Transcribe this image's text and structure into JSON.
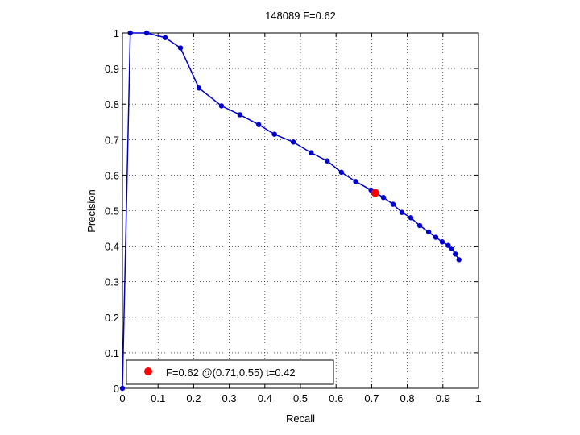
{
  "chart_data": {
    "type": "line",
    "title": "148089 F=0.62",
    "xlabel": "Recall",
    "ylabel": "Precision",
    "xlim": [
      0,
      1
    ],
    "ylim": [
      0,
      1
    ],
    "grid": true,
    "legend_position": "bottom-left",
    "x_ticks": [
      "0",
      "0.1",
      "0.2",
      "0.3",
      "0.4",
      "0.5",
      "0.6",
      "0.7",
      "0.8",
      "0.9",
      "1"
    ],
    "y_ticks": [
      "0",
      "0.1",
      "0.2",
      "0.3",
      "0.4",
      "0.5",
      "0.6",
      "0.7",
      "0.8",
      "0.9",
      "1"
    ],
    "series": [
      {
        "color": "#0000cc",
        "points": [
          [
            0.0,
            0.0
          ],
          [
            0.022,
            1.0
          ],
          [
            0.068,
            1.0
          ],
          [
            0.12,
            0.987
          ],
          [
            0.163,
            0.958
          ],
          [
            0.215,
            0.845
          ],
          [
            0.278,
            0.795
          ],
          [
            0.33,
            0.77
          ],
          [
            0.383,
            0.742
          ],
          [
            0.427,
            0.715
          ],
          [
            0.48,
            0.693
          ],
          [
            0.53,
            0.663
          ],
          [
            0.575,
            0.64
          ],
          [
            0.615,
            0.608
          ],
          [
            0.655,
            0.582
          ],
          [
            0.698,
            0.558
          ],
          [
            0.733,
            0.537
          ],
          [
            0.76,
            0.518
          ],
          [
            0.785,
            0.495
          ],
          [
            0.81,
            0.48
          ],
          [
            0.835,
            0.458
          ],
          [
            0.86,
            0.44
          ],
          [
            0.88,
            0.425
          ],
          [
            0.898,
            0.412
          ],
          [
            0.915,
            0.402
          ],
          [
            0.925,
            0.393
          ],
          [
            0.935,
            0.378
          ],
          [
            0.945,
            0.362
          ]
        ]
      }
    ],
    "highlight": {
      "x": 0.71,
      "y": 0.55,
      "color": "#ff0000"
    },
    "legend": {
      "label": "F=0.62 @(0.71,0.55) t=0.42",
      "marker_color": "#ff0000"
    }
  }
}
